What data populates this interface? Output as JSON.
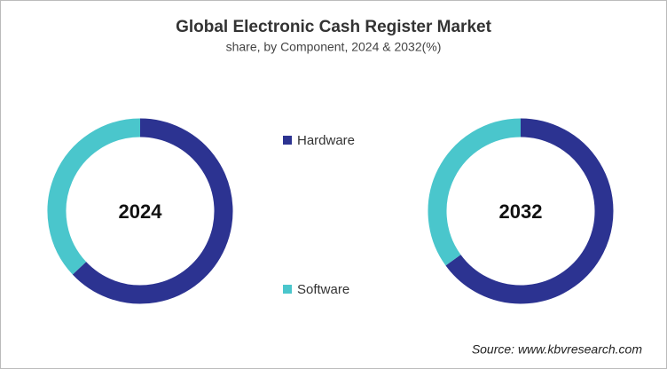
{
  "chart_data": {
    "type": "donut",
    "title": "Global Electronic Cash Register Market",
    "subtitle": "share, by Component, 2024 & 2032(%)",
    "categories": [
      "Hardware",
      "Software"
    ],
    "colors": [
      "#2c3391",
      "#4ac6cc"
    ],
    "series": [
      {
        "name": "2024",
        "values": [
          63,
          37
        ]
      },
      {
        "name": "2032",
        "values": [
          65,
          35
        ]
      }
    ],
    "source": "Source: www.kbvresearch.com"
  }
}
